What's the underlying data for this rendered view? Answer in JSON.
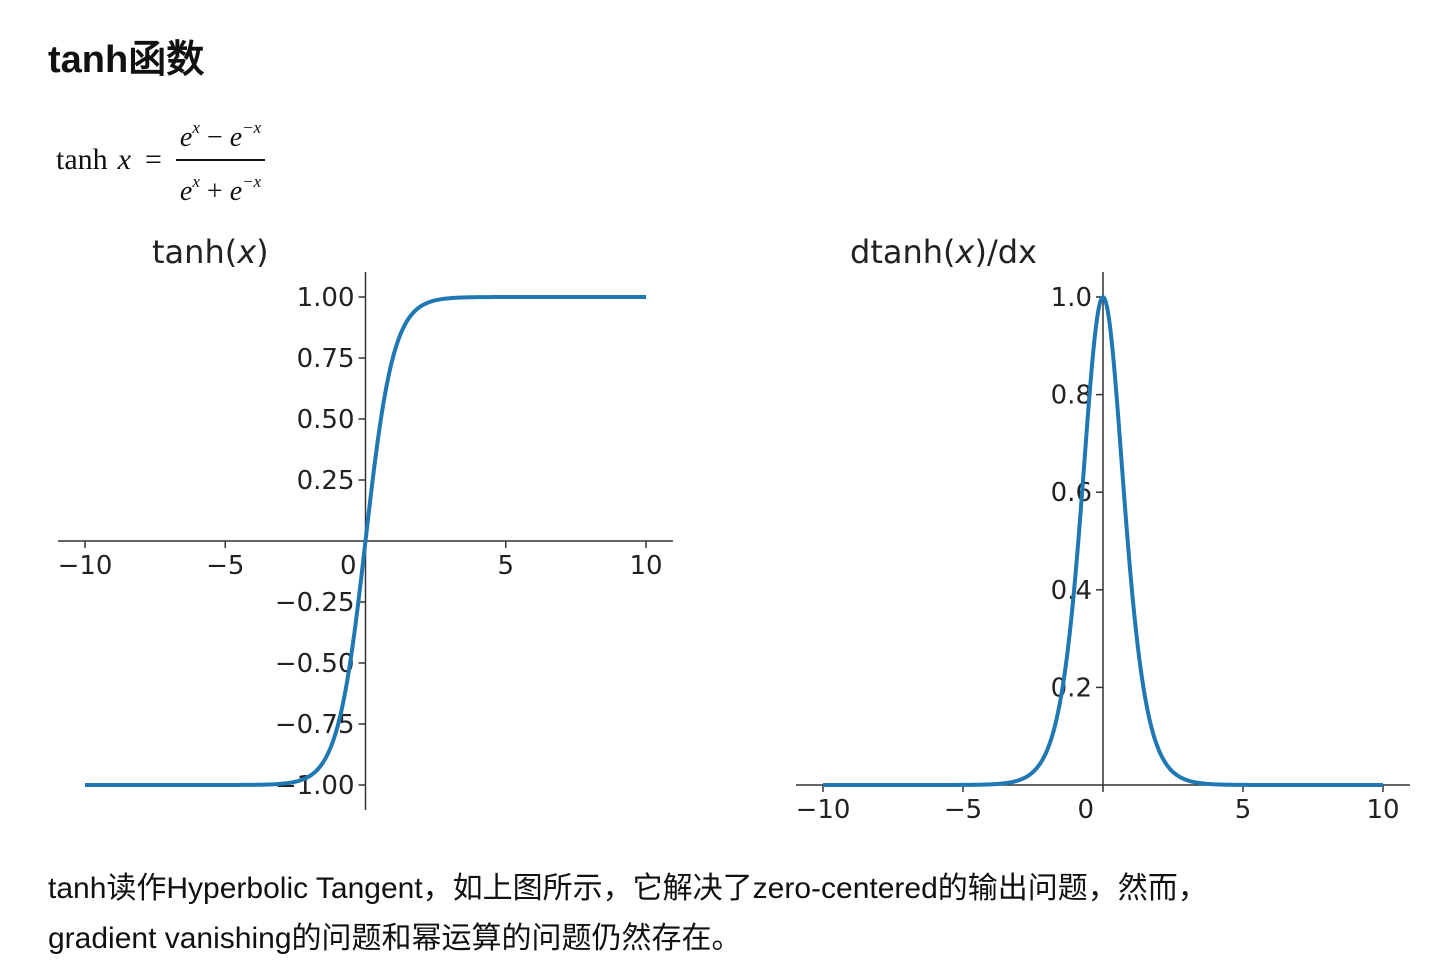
{
  "heading": "tanh函数",
  "formula": {
    "lhs_fn": "tanh",
    "lhs_var": "x",
    "equals": "=",
    "numerator": {
      "a": "e",
      "a_exp": "x",
      "op": " − ",
      "b": "e",
      "b_exp": "−x"
    },
    "denominator": {
      "a": "e",
      "a_exp": "x",
      "op": " + ",
      "b": "e",
      "b_exp": "−x"
    }
  },
  "chart_data": [
    {
      "type": "line",
      "title": "tanh(x)",
      "function": "tanh",
      "x_range": [
        -10,
        10
      ],
      "ylim": [
        -1.05,
        1.1
      ],
      "xticks": [
        -10,
        -5,
        0,
        5,
        10
      ],
      "xtick_labels": [
        "−10",
        "−5",
        "0",
        "5",
        "10"
      ],
      "yticks": [
        -1.0,
        -0.75,
        -0.5,
        -0.25,
        0.25,
        0.5,
        0.75,
        1.0
      ],
      "ytick_labels": [
        "−1.00",
        "−0.75",
        "−0.50",
        "−0.25",
        "0.25",
        "0.50",
        "0.75",
        "1.00"
      ],
      "series_color": "#1f77b4",
      "grid": false,
      "x": [
        -10,
        -8,
        -6,
        -4,
        -3,
        -2,
        -1.5,
        -1,
        -0.5,
        0,
        0.5,
        1,
        1.5,
        2,
        3,
        4,
        6,
        8,
        10
      ],
      "y": [
        -1.0,
        -1.0,
        -1.0,
        -0.999,
        -0.995,
        -0.964,
        -0.905,
        -0.762,
        -0.462,
        0.0,
        0.462,
        0.762,
        0.905,
        0.964,
        0.995,
        0.999,
        1.0,
        1.0,
        1.0
      ]
    },
    {
      "type": "line",
      "title": "dtanh(x)/dx",
      "function": "dtanh",
      "x_range": [
        -10,
        10
      ],
      "ylim": [
        0,
        1.05
      ],
      "xticks": [
        -10,
        -5,
        0,
        5,
        10
      ],
      "xtick_labels": [
        "−10",
        "−5",
        "0",
        "5",
        "10"
      ],
      "yticks": [
        0.2,
        0.4,
        0.6,
        0.8,
        1.0
      ],
      "ytick_labels": [
        "0.2",
        "0.4",
        "0.6",
        "0.8",
        "1.0"
      ],
      "series_color": "#1f77b4",
      "grid": false,
      "x": [
        -10,
        -6,
        -4,
        -3,
        -2,
        -1.5,
        -1,
        -0.5,
        0,
        0.5,
        1,
        1.5,
        2,
        3,
        4,
        6,
        10
      ],
      "y": [
        0.0,
        0.0,
        0.001,
        0.01,
        0.071,
        0.181,
        0.42,
        0.786,
        1.0,
        0.786,
        0.42,
        0.181,
        0.071,
        0.01,
        0.001,
        0.0,
        0.0
      ]
    }
  ],
  "paragraph": {
    "line1": "tanh读作Hyperbolic Tangent，如上图所示，它解决了zero-centered的输出问题，然而，",
    "line2": "gradient vanishing的问题和幂运算的问题仍然存在。"
  }
}
